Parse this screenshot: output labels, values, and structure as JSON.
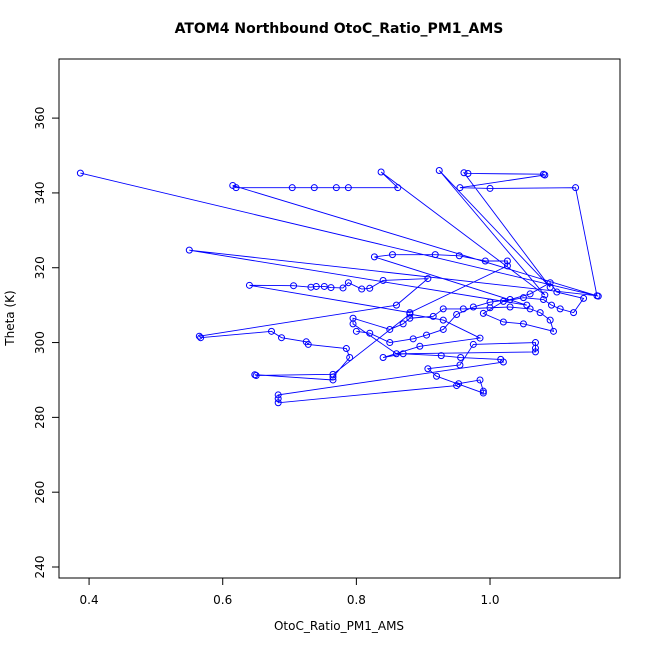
{
  "chart_data": {
    "type": "line",
    "markers": true,
    "title": "ATOM4 Northbound OtoC_Ratio_PM1_AMS",
    "x_label": "OtoC_Ratio_PM1_AMS",
    "y_label": "Theta (K)",
    "color": "#0000ff",
    "xlim": [
      0.355,
      1.1945
    ],
    "ylim": [
      237.06,
      375.8
    ],
    "xticks": [
      0.4,
      0.6,
      0.8,
      {
        "value": 1,
        "label": "1.0"
      }
    ],
    "yticks": [
      240,
      260,
      280,
      300,
      320,
      340,
      360
    ],
    "x": [
      0.387,
      1.162,
      0.615,
      0.62,
      0.704,
      0.737,
      0.77,
      0.788,
      0.862,
      0.837,
      1.082,
      0.924,
      1.09,
      0.961,
      0.967,
      1.08,
      1.082,
      0.955,
      1.0,
      1.128,
      1.16,
      0.55,
      1.055,
      0.827,
      0.854,
      0.918,
      0.954,
      0.993,
      1.026,
      1.026,
      0.88,
      0.64,
      0.706,
      0.732,
      0.74,
      0.752,
      0.762,
      0.78,
      0.788,
      0.808,
      0.82,
      0.84,
      0.907,
      0.86,
      0.565,
      0.567,
      0.673,
      0.688,
      0.725,
      0.728,
      0.785,
      0.79,
      0.765,
      0.765,
      0.648,
      0.65,
      0.765,
      0.88,
      0.93,
      0.985,
      0.895,
      0.84,
      0.87,
      0.927,
      0.956,
      1.016,
      1.02,
      0.683,
      0.683,
      0.683,
      0.95,
      0.953,
      0.985,
      0.99,
      0.99,
      0.92,
      0.907,
      0.955,
      0.975,
      1.068,
      1.068,
      1.068,
      0.86,
      0.795,
      0.795,
      0.85,
      0.87,
      0.88,
      0.915,
      0.93,
      0.96,
      1.0,
      1.03,
      1.06,
      1.075,
      1.09,
      1.095,
      1.05,
      1.02,
      0.99,
      1.02,
      1.05,
      1.08,
      1.092,
      1.105,
      1.125,
      1.14,
      1.1,
      1.09,
      1.06,
      1.03,
      1.0,
      0.975,
      0.95,
      0.93,
      0.905,
      0.885,
      0.85,
      0.82,
      0.8
    ],
    "y": [
      345.3,
      312.4,
      342.0,
      341.4,
      341.4,
      341.4,
      341.4,
      341.4,
      341.4,
      345.6,
      312.7,
      346.0,
      314.8,
      345.4,
      345.2,
      345.0,
      344.8,
      341.4,
      341.2,
      341.4,
      312.5,
      324.7,
      310.0,
      322.9,
      323.5,
      323.5,
      323.2,
      321.8,
      321.8,
      320.5,
      308.0,
      315.3,
      315.2,
      314.8,
      315.0,
      315.0,
      314.7,
      314.6,
      316.0,
      314.3,
      314.5,
      316.6,
      317.1,
      310.0,
      301.7,
      301.3,
      303.0,
      301.3,
      300.2,
      299.5,
      298.4,
      296.0,
      290.8,
      290.0,
      291.4,
      291.2,
      291.5,
      307.6,
      306.0,
      301.2,
      299.0,
      296.0,
      297.0,
      296.5,
      296.0,
      295.5,
      294.8,
      286.0,
      285.0,
      283.9,
      288.5,
      289.0,
      290.0,
      287.0,
      286.5,
      291.0,
      293.0,
      294.0,
      299.5,
      300.0,
      298.5,
      297.5,
      297.0,
      305.0,
      306.5,
      303.5,
      305.0,
      306.5,
      307.0,
      309.0,
      309.0,
      309.3,
      309.5,
      309.0,
      308.0,
      306.0,
      303.0,
      305.0,
      305.5,
      307.8,
      311.0,
      312.0,
      311.5,
      310.0,
      309.0,
      308.0,
      311.8,
      313.5,
      316.0,
      313.0,
      311.5,
      310.8,
      309.5,
      307.5,
      303.5,
      302.0,
      301.0,
      300.0,
      302.5,
      303.0
    ]
  }
}
